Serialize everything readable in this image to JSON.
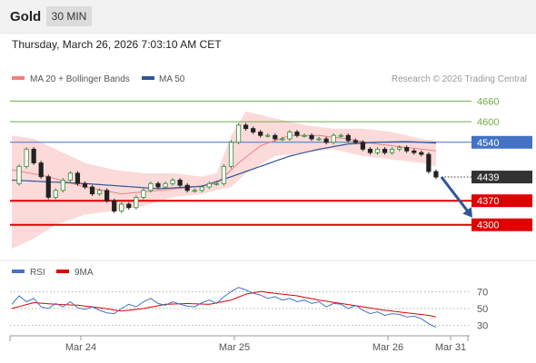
{
  "header": {
    "symbol": "Gold",
    "timeframe": "30 MIN"
  },
  "datetime": "Thursday, March 26, 2026 7:03:10 AM CET",
  "colors": {
    "bollinger": "#f08080",
    "band_fill": "#fcdada",
    "ma50": "#2f5597",
    "resistance": "#70ad47",
    "current": "#4472c4",
    "support": "#e00000",
    "last": "#333333",
    "arrow": "#2f5597",
    "rsi": "#4472c4",
    "ma9": "#e00000",
    "candle_up": "#2e8b2e",
    "candle_down": "#222222"
  },
  "chart_data": [
    {
      "type": "candlestick",
      "legend": [
        {
          "name": "MA 20 + Bollinger Bands",
          "color": "#f08080"
        },
        {
          "name": "MA 50",
          "color": "#2f5597"
        }
      ],
      "watermark": "Research © 2026 Trading Central",
      "x_ticks": [
        "Mar 24",
        "Mar 25",
        "Mar 26",
        "Mar 31"
      ],
      "ylim": [
        4220,
        4690
      ],
      "levels": [
        {
          "label": "4660",
          "value": 4660,
          "kind": "resistance"
        },
        {
          "label": "4600",
          "value": 4600,
          "kind": "resistance"
        },
        {
          "label": "4540",
          "value": 4540,
          "kind": "current"
        },
        {
          "label": "4439",
          "value": 4439,
          "kind": "last"
        },
        {
          "label": "4370",
          "value": 4370,
          "kind": "support"
        },
        {
          "label": "4300",
          "value": 4300,
          "kind": "support"
        }
      ],
      "close_path": [
        [
          0,
          4420
        ],
        [
          1,
          4470
        ],
        [
          2,
          4520
        ],
        [
          3,
          4480
        ],
        [
          4,
          4440
        ],
        [
          5,
          4380
        ],
        [
          6,
          4400
        ],
        [
          7,
          4430
        ],
        [
          8,
          4450
        ],
        [
          9,
          4420
        ],
        [
          10,
          4410
        ],
        [
          11,
          4390
        ],
        [
          12,
          4400
        ],
        [
          13,
          4370
        ],
        [
          14,
          4340
        ],
        [
          15,
          4360
        ],
        [
          16,
          4350
        ],
        [
          17,
          4380
        ],
        [
          18,
          4400
        ],
        [
          19,
          4420
        ],
        [
          20,
          4410
        ],
        [
          21,
          4420
        ],
        [
          22,
          4430
        ],
        [
          23,
          4415
        ],
        [
          24,
          4400
        ],
        [
          25,
          4400
        ],
        [
          26,
          4410
        ],
        [
          27,
          4420
        ],
        [
          28,
          4420
        ],
        [
          29,
          4470
        ],
        [
          30,
          4540
        ],
        [
          31,
          4590
        ],
        [
          32,
          4580
        ],
        [
          33,
          4570
        ],
        [
          34,
          4560
        ],
        [
          35,
          4560
        ],
        [
          36,
          4550
        ],
        [
          37,
          4550
        ],
        [
          38,
          4570
        ],
        [
          39,
          4560
        ],
        [
          40,
          4560
        ],
        [
          41,
          4550
        ],
        [
          42,
          4550
        ],
        [
          43,
          4540
        ],
        [
          44,
          4560
        ],
        [
          45,
          4560
        ],
        [
          46,
          4545
        ],
        [
          47,
          4540
        ],
        [
          48,
          4520
        ],
        [
          49,
          4510
        ],
        [
          50,
          4520
        ],
        [
          51,
          4510
        ],
        [
          52,
          4520
        ],
        [
          53,
          4525
        ],
        [
          54,
          4515
        ],
        [
          55,
          4510
        ],
        [
          56,
          4505
        ],
        [
          57,
          4455
        ],
        [
          58,
          4439
        ]
      ],
      "ma20": [
        [
          0,
          4460
        ],
        [
          5,
          4440
        ],
        [
          10,
          4410
        ],
        [
          15,
          4390
        ],
        [
          20,
          4400
        ],
        [
          25,
          4410
        ],
        [
          28,
          4420
        ],
        [
          31,
          4480
        ],
        [
          34,
          4530
        ],
        [
          38,
          4560
        ],
        [
          42,
          4560
        ],
        [
          46,
          4550
        ],
        [
          50,
          4535
        ],
        [
          54,
          4525
        ],
        [
          58,
          4515
        ]
      ],
      "bb_upper": [
        [
          0,
          4560
        ],
        [
          3,
          4550
        ],
        [
          6,
          4520
        ],
        [
          10,
          4480
        ],
        [
          14,
          4460
        ],
        [
          18,
          4450
        ],
        [
          22,
          4450
        ],
        [
          26,
          4440
        ],
        [
          28,
          4450
        ],
        [
          30,
          4560
        ],
        [
          32,
          4630
        ],
        [
          36,
          4610
        ],
        [
          40,
          4590
        ],
        [
          44,
          4580
        ],
        [
          48,
          4580
        ],
        [
          52,
          4570
        ],
        [
          56,
          4550
        ],
        [
          58,
          4545
        ]
      ],
      "bb_lower": [
        [
          0,
          4230
        ],
        [
          3,
          4260
        ],
        [
          6,
          4300
        ],
        [
          10,
          4330
        ],
        [
          14,
          4340
        ],
        [
          18,
          4355
        ],
        [
          22,
          4380
        ],
        [
          26,
          4390
        ],
        [
          28,
          4400
        ],
        [
          30,
          4410
        ],
        [
          32,
          4450
        ],
        [
          36,
          4500
        ],
        [
          40,
          4510
        ],
        [
          44,
          4520
        ],
        [
          48,
          4500
        ],
        [
          52,
          4490
        ],
        [
          56,
          4480
        ],
        [
          58,
          4470
        ]
      ],
      "ma50": [
        [
          0,
          4430
        ],
        [
          10,
          4420
        ],
        [
          20,
          4405
        ],
        [
          26,
          4412
        ],
        [
          30,
          4440
        ],
        [
          34,
          4470
        ],
        [
          38,
          4500
        ],
        [
          42,
          4520
        ],
        [
          46,
          4535
        ],
        [
          50,
          4540
        ],
        [
          54,
          4542
        ],
        [
          58,
          4538
        ]
      ],
      "forecast_arrow": {
        "from": [
          58,
          4439
        ],
        "to": [
          61,
          4300
        ]
      }
    },
    {
      "type": "line",
      "legend": [
        {
          "name": "RSI",
          "color": "#4472c4"
        },
        {
          "name": "9MA",
          "color": "#e00000"
        }
      ],
      "ylim": [
        20,
        80
      ],
      "y_ticks": [
        70,
        50,
        30
      ],
      "rsi": [
        [
          0,
          55
        ],
        [
          1,
          65
        ],
        [
          2,
          58
        ],
        [
          3,
          62
        ],
        [
          4,
          52
        ],
        [
          5,
          50
        ],
        [
          6,
          56
        ],
        [
          7,
          52
        ],
        [
          8,
          58
        ],
        [
          9,
          51
        ],
        [
          10,
          49
        ],
        [
          11,
          52
        ],
        [
          12,
          48
        ],
        [
          13,
          45
        ],
        [
          14,
          44
        ],
        [
          15,
          50
        ],
        [
          16,
          55
        ],
        [
          17,
          52
        ],
        [
          18,
          58
        ],
        [
          19,
          62
        ],
        [
          20,
          56
        ],
        [
          21,
          54
        ],
        [
          22,
          58
        ],
        [
          23,
          55
        ],
        [
          24,
          53
        ],
        [
          25,
          52
        ],
        [
          26,
          57
        ],
        [
          27,
          60
        ],
        [
          28,
          56
        ],
        [
          29,
          64
        ],
        [
          30,
          70
        ],
        [
          31,
          75
        ],
        [
          32,
          72
        ],
        [
          33,
          68
        ],
        [
          34,
          66
        ],
        [
          35,
          62
        ],
        [
          36,
          64
        ],
        [
          37,
          60
        ],
        [
          38,
          62
        ],
        [
          39,
          58
        ],
        [
          40,
          60
        ],
        [
          41,
          56
        ],
        [
          42,
          58
        ],
        [
          43,
          52
        ],
        [
          44,
          56
        ],
        [
          45,
          55
        ],
        [
          46,
          50
        ],
        [
          47,
          54
        ],
        [
          48,
          48
        ],
        [
          49,
          44
        ],
        [
          50,
          46
        ],
        [
          51,
          42
        ],
        [
          52,
          44
        ],
        [
          53,
          43
        ],
        [
          54,
          40
        ],
        [
          55,
          41
        ],
        [
          56,
          38
        ],
        [
          57,
          32
        ],
        [
          58,
          28
        ]
      ],
      "ma9": [
        [
          0,
          50
        ],
        [
          3,
          57
        ],
        [
          6,
          55
        ],
        [
          9,
          54
        ],
        [
          12,
          51
        ],
        [
          15,
          47
        ],
        [
          18,
          50
        ],
        [
          21,
          55
        ],
        [
          24,
          56
        ],
        [
          27,
          55
        ],
        [
          30,
          60
        ],
        [
          32,
          67
        ],
        [
          34,
          70
        ],
        [
          36,
          68
        ],
        [
          39,
          65
        ],
        [
          42,
          60
        ],
        [
          45,
          56
        ],
        [
          48,
          52
        ],
        [
          51,
          48
        ],
        [
          54,
          45
        ],
        [
          57,
          42
        ],
        [
          58,
          40
        ]
      ]
    }
  ]
}
